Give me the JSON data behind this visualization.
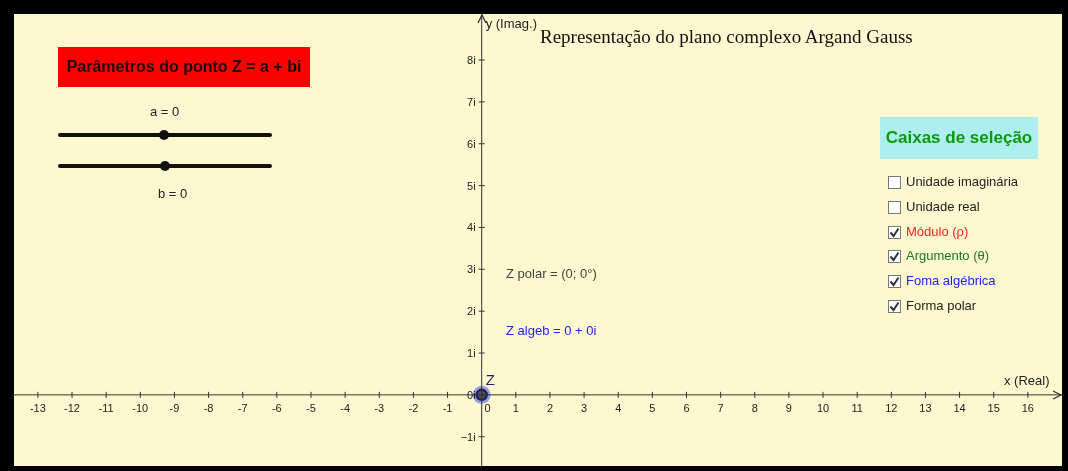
{
  "chart_data": {
    "type": "scatter",
    "title": "Representação do plano complexo Argand Gauss",
    "xlabel": "x (Real)",
    "ylabel": "y (Imag.)",
    "x": [
      0
    ],
    "series": [
      {
        "color": "#1f1f5f",
        "values": [
          0
        ]
      }
    ],
    "marker": "circle",
    "xlim": [
      -13.7,
      17.0
    ],
    "ylim": [
      -1.7,
      9.1
    ],
    "xticks": [
      -13,
      -12,
      -11,
      -10,
      -9,
      -8,
      -7,
      -6,
      -5,
      -4,
      -3,
      -2,
      -1,
      0,
      1,
      2,
      3,
      4,
      5,
      6,
      7,
      8,
      9,
      10,
      11,
      12,
      13,
      14,
      15,
      16
    ],
    "yticks": [
      {
        "value": -1,
        "label": "−1i"
      },
      {
        "value": 0,
        "label": "0i"
      },
      {
        "value": 1,
        "label": "1i"
      },
      {
        "value": 2,
        "label": "2i"
      },
      {
        "value": 3,
        "label": "3i"
      },
      {
        "value": 4,
        "label": "4i"
      },
      {
        "value": 5,
        "label": "5i"
      },
      {
        "value": 6,
        "label": "6i"
      },
      {
        "value": 7,
        "label": "7i"
      },
      {
        "value": 8,
        "label": "8i"
      }
    ],
    "annotations": [
      {
        "text": "Z",
        "x": 0,
        "y": 0
      },
      "Parâmetros do ponto Z = a + bi",
      "a = 0",
      "b = 0",
      "Caixas de seleção",
      "Unidade imaginária",
      "Unidade real",
      "Módulo (ρ)",
      "Argumento (θ)",
      "Foma algébrica",
      "Forma polar",
      "Z polar = (0; 0°)",
      "Z algeb = 0 + 0i"
    ]
  }
}
